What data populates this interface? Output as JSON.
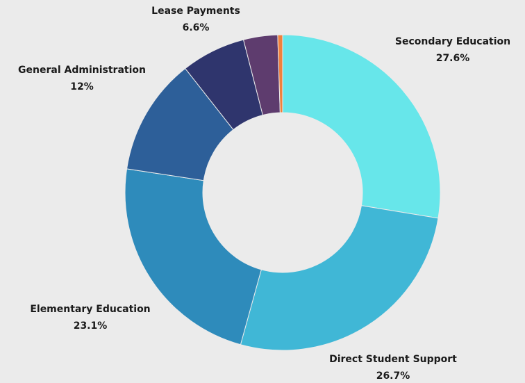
{
  "chart_data": {
    "type": "donut",
    "categories": [
      "Secondary Education",
      "Direct Student Support",
      "Elementary Education",
      "General Administration",
      "Lease Payments",
      null,
      null
    ],
    "values": [
      27.6,
      26.7,
      23.1,
      12,
      6.6,
      3.5,
      0.5
    ],
    "value_labels": [
      "27.6%",
      "26.7%",
      "23.1%",
      "12%",
      "6.6%",
      null,
      null
    ],
    "colors": [
      "#67e6ea",
      "#40b7d6",
      "#2e8bbb",
      "#2d5f99",
      "#2f356d",
      "#5e3c6e",
      "#f0803c"
    ]
  }
}
